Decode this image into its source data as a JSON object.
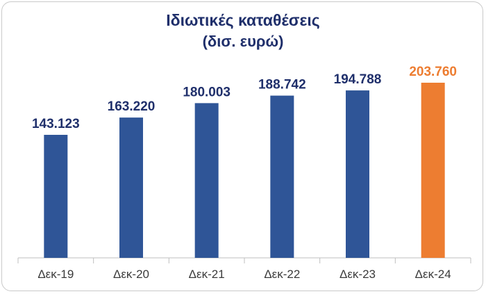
{
  "chart_data": {
    "type": "bar",
    "title": "Ιδιωτικές καταθέσεις",
    "subtitle": "(δισ. ευρώ)",
    "categories": [
      "Δεκ-19",
      "Δεκ-20",
      "Δεκ-21",
      "Δεκ-22",
      "Δεκ-23",
      "Δεκ-24"
    ],
    "values": [
      143.123,
      163.22,
      180.003,
      188.742,
      194.788,
      203.76
    ],
    "value_labels": [
      "143.123",
      "163.220",
      "180.003",
      "188.742",
      "194.788",
      "203.760"
    ],
    "colors": [
      "#2f5597",
      "#2f5597",
      "#2f5597",
      "#2f5597",
      "#2f5597",
      "#ed7d31"
    ],
    "label_colors": [
      "#1f2f6b",
      "#1f2f6b",
      "#1f2f6b",
      "#1f2f6b",
      "#1f2f6b",
      "#ed7d31"
    ],
    "xlabel": "",
    "ylabel": "",
    "ylim": [
      0,
      250
    ],
    "grid": false,
    "legend": "none"
  }
}
